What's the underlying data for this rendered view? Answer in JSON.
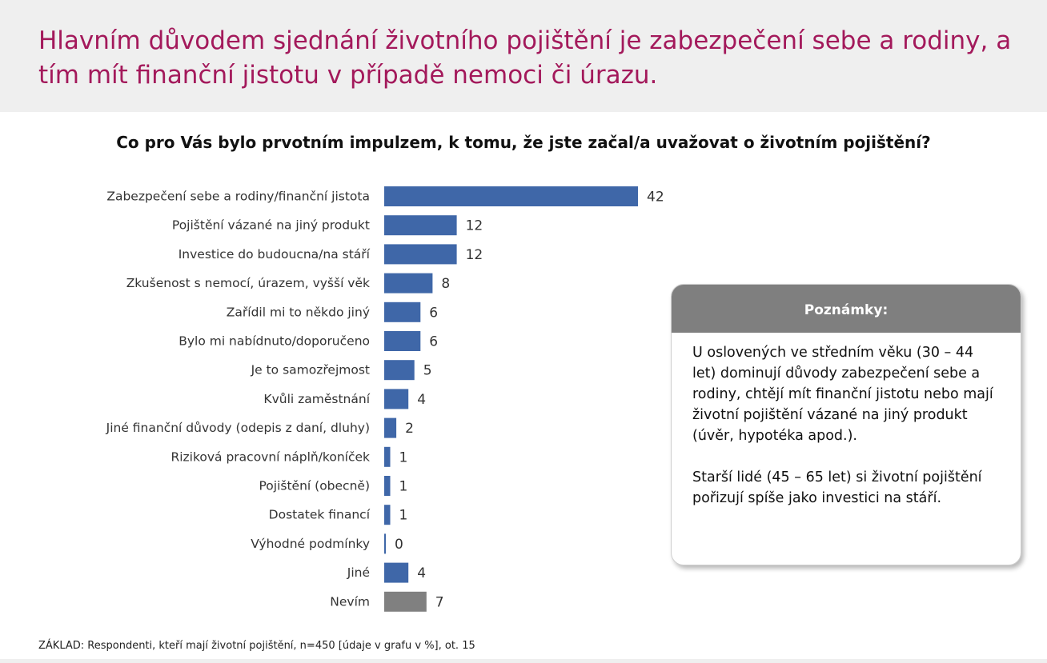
{
  "header": {
    "title": "Hlavním důvodem sjednání životního pojištění je zabezpečení sebe a rodiny, a tím mít finanční jistotu v případě nemoci či úrazu."
  },
  "chart_data": {
    "type": "bar",
    "orientation": "horizontal",
    "title": "Co pro Vás bylo prvotním impulzem, k tomu, že jste začal/a uvažovat o životním pojištění?",
    "categories": [
      "Zabezpečení sebe a rodiny/finanční jistota",
      "Pojištění vázané na jiný produkt",
      "Investice do budoucna/na stáří",
      "Zkušenost s nemocí, úrazem, vyšší věk",
      "Zařídil mi to někdo jiný",
      "Bylo mi nabídnuto/doporučeno",
      "Je to samozřejmost",
      "Kvůli zaměstnání",
      "Jiné finanční důvody (odepis z daní, dluhy)",
      "Riziková pracovní náplň/koníček",
      "Pojištění (obecně)",
      "Dostatek financí",
      "Výhodné podmínky",
      "Jiné",
      "Nevím"
    ],
    "values": [
      42,
      12,
      12,
      8,
      6,
      6,
      5,
      4,
      2,
      1,
      1,
      1,
      0,
      4,
      7
    ],
    "colors": {
      "bar": "#3f67a8",
      "bar_last": "#808080"
    },
    "xlim": [
      0,
      42
    ],
    "grid": false,
    "legend": "none"
  },
  "notes": {
    "title": "Poznámky:",
    "paragraphs": [
      "U oslovených ve středním věku (30 – 44 let) dominují důvody zabezpečení sebe a rodiny, chtějí mít finanční jistotu nebo mají životní pojištění vázané na jiný produkt (úvěr, hypotéka apod.).",
      "Starší lidé (45 – 65 let) si životní pojištění pořizují spíše jako investici na stáří."
    ]
  },
  "footer": {
    "text": "ZÁKLAD: Respondenti, kteří mají životní pojištění, n=450 [údaje v grafu v %], ot. 15"
  },
  "colors": {
    "title": "#a3195b",
    "header_bg": "#efefef",
    "notes_header_bg": "#7f7f7f"
  }
}
